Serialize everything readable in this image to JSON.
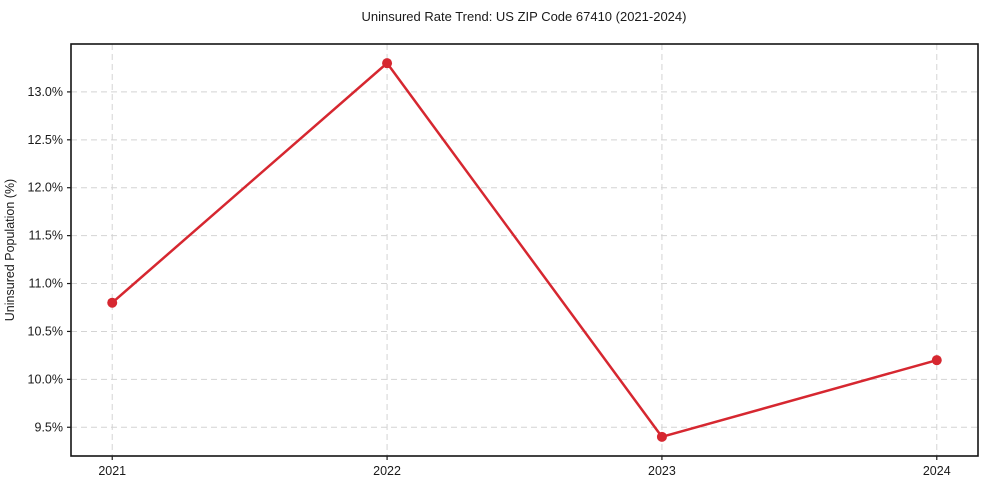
{
  "chart_data": {
    "type": "line",
    "title": "Uninsured Rate Trend: US ZIP Code 67410 (2021-2024)",
    "xlabel": "",
    "ylabel": "Uninsured Population (%)",
    "unit": "%",
    "x": [
      2021,
      2022,
      2023,
      2024
    ],
    "values": [
      10.8,
      13.3,
      9.4,
      10.2
    ],
    "xtick_labels": [
      "2021",
      "2022",
      "2023",
      "2024"
    ],
    "yticks": [
      9.5,
      10.0,
      10.5,
      11.0,
      11.5,
      12.0,
      12.5,
      13.0
    ],
    "ytick_labels": [
      "9.5%",
      "10.0%",
      "10.5%",
      "11.0%",
      "11.5%",
      "12.0%",
      "12.5%",
      "13.0%"
    ],
    "xlim": [
      2020.85,
      2024.15
    ],
    "ylim": [
      9.2,
      13.5
    ],
    "grid": true,
    "grid_style": "dashed",
    "legend": "none",
    "line_color": "#d62730",
    "marker": "circle",
    "marker_color": "#d62730",
    "grid_color": "#d4d4d4",
    "frame_color": "#141414",
    "background_color": "#ffffff"
  }
}
